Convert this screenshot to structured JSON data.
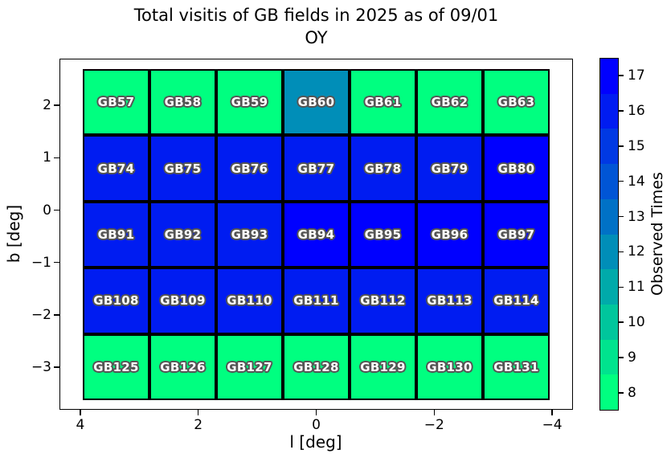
{
  "title": {
    "line1": "Total visitis of GB fields in 2025 as of 09/01",
    "line2": "OY"
  },
  "axes": {
    "xlabel": "l [deg]",
    "ylabel": "b [deg]"
  },
  "colorbar": {
    "label": "Observed Times"
  },
  "chart_data": {
    "type": "heatmap",
    "title": "Total visitis of GB fields in 2025 as of 09/01 OY",
    "xlabel": "l [deg]",
    "ylabel": "b [deg]",
    "colorbar_label": "Observed Times",
    "x_ticks": [
      4,
      2,
      0,
      -2,
      -4
    ],
    "y_ticks": [
      2,
      1,
      0,
      -1,
      -2,
      -3
    ],
    "x_range": [
      4.35,
      -4.35
    ],
    "y_range": [
      -3.4,
      2.65
    ],
    "colorbar_ticks": [
      8,
      9,
      10,
      11,
      12,
      13,
      14,
      15,
      16,
      17
    ],
    "colorbar_range": [
      8,
      17
    ],
    "legend_position": "right",
    "grid": "off",
    "palette": {
      "8": "#00ff80",
      "9": "#00e38e",
      "10": "#00c69c",
      "11": "#00aaaa",
      "12": "#008eb8",
      "13": "#0071c6",
      "14": "#0055d5",
      "15": "#0039e3",
      "16": "#001cf1",
      "17": "#0000ff"
    },
    "rows": [
      {
        "labels": [
          "GB57",
          "GB58",
          "GB59",
          "GB60",
          "GB61",
          "GB62",
          "GB63"
        ],
        "values": [
          8,
          8,
          8,
          12,
          8,
          8,
          8
        ]
      },
      {
        "labels": [
          "GB74",
          "GB75",
          "GB76",
          "GB77",
          "GB78",
          "GB79",
          "GB80"
        ],
        "values": [
          16,
          16,
          16,
          16,
          16,
          16,
          17
        ]
      },
      {
        "labels": [
          "GB91",
          "GB92",
          "GB93",
          "GB94",
          "GB95",
          "GB96",
          "GB97"
        ],
        "values": [
          16,
          16,
          16,
          17,
          17,
          17,
          17
        ]
      },
      {
        "labels": [
          "GB108",
          "GB109",
          "GB110",
          "GB111",
          "GB112",
          "GB113",
          "GB114"
        ],
        "values": [
          16,
          16,
          16,
          16,
          16,
          16,
          16
        ]
      },
      {
        "labels": [
          "GB125",
          "GB126",
          "GB127",
          "GB128",
          "GB129",
          "GB130",
          "GB131"
        ],
        "values": [
          8,
          8,
          8,
          8,
          8,
          8,
          8
        ]
      }
    ]
  }
}
